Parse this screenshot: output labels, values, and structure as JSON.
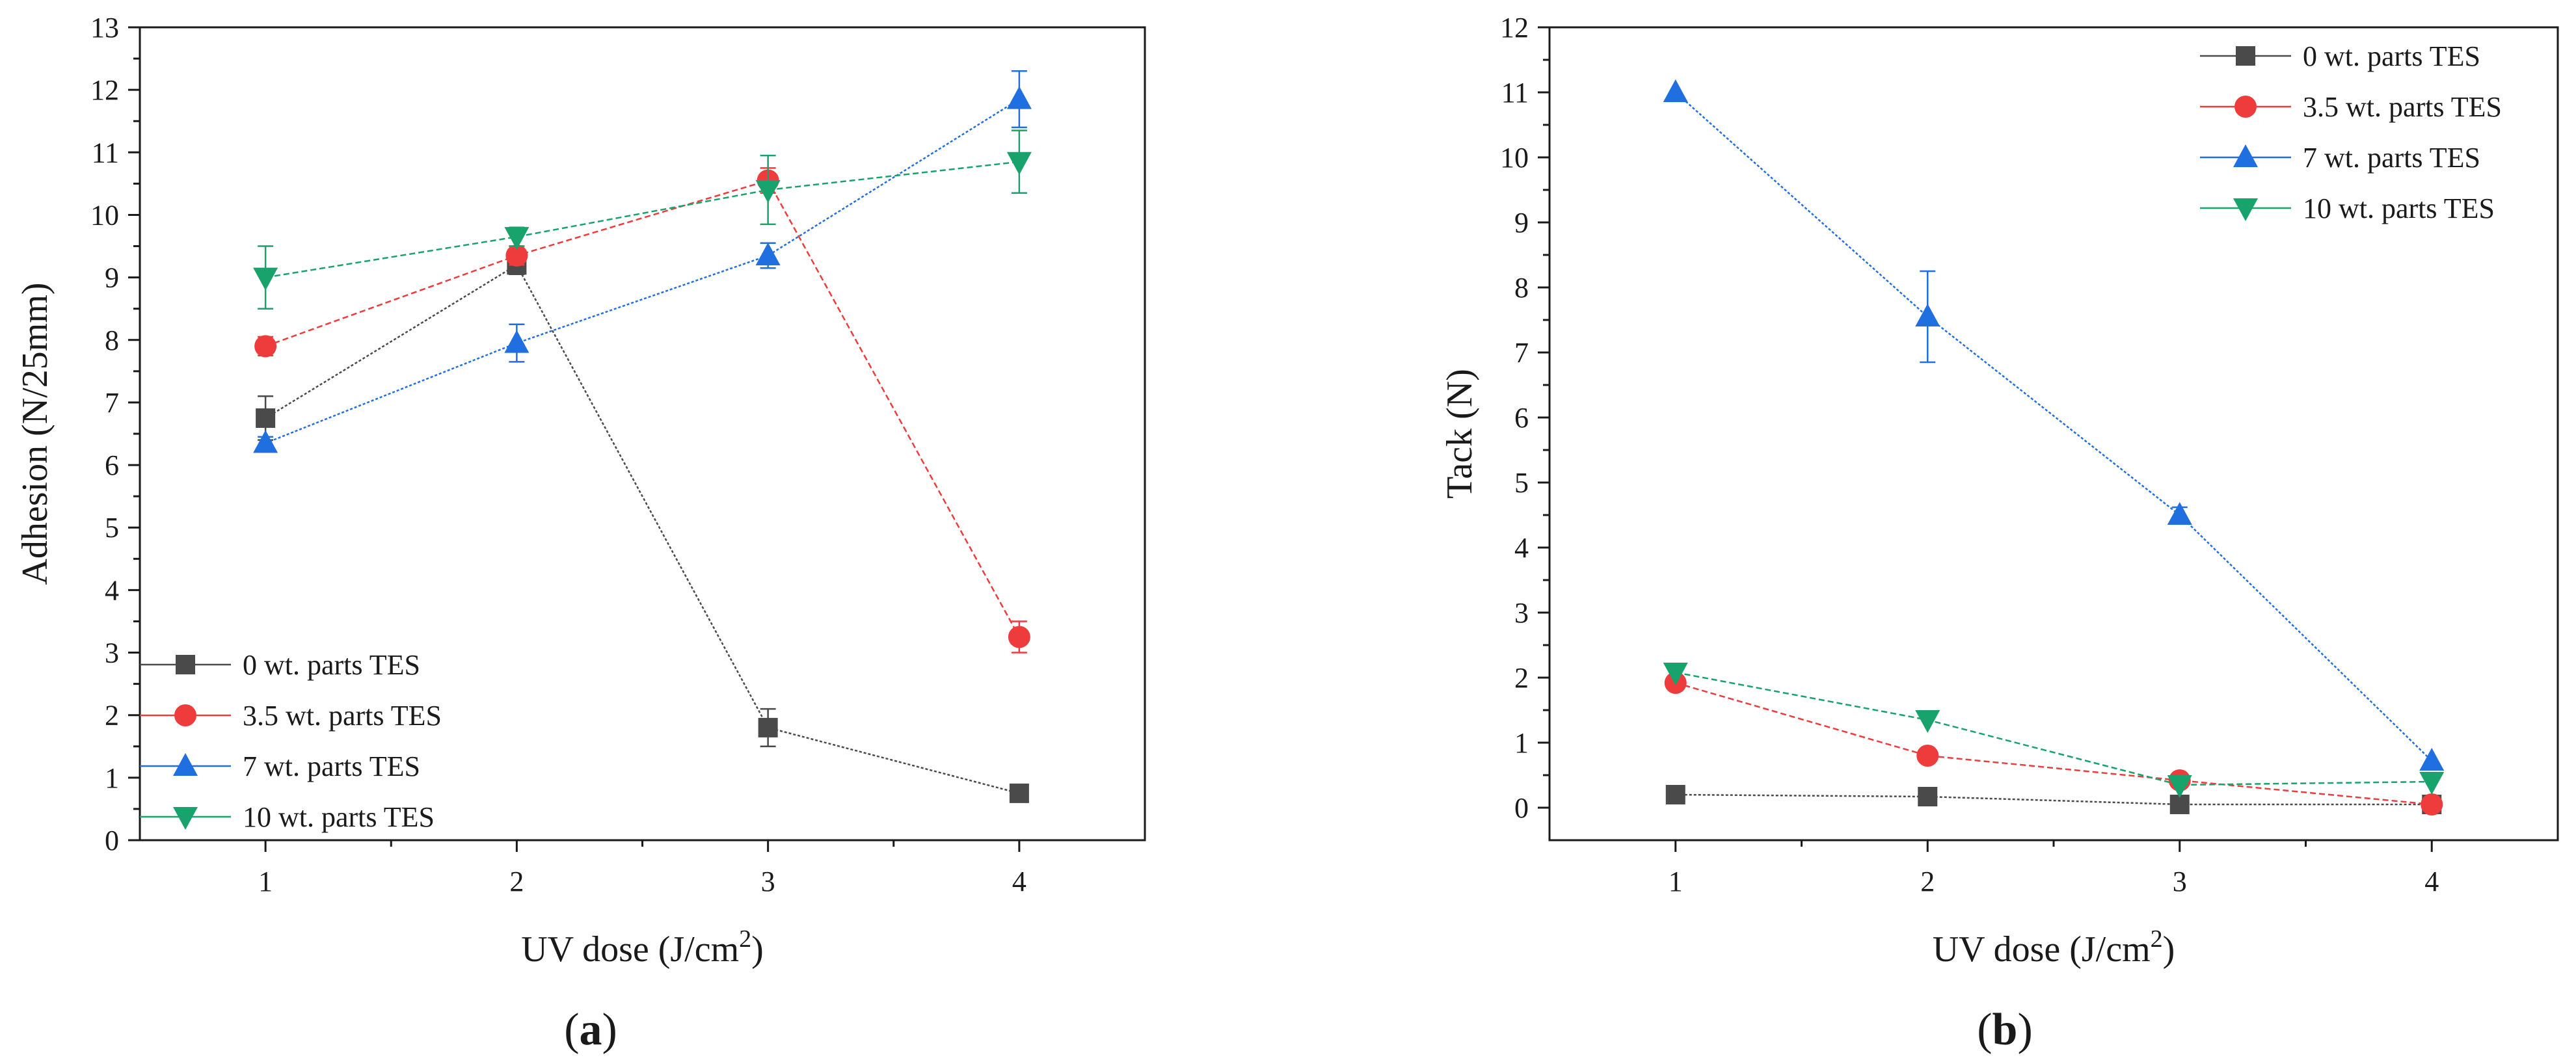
{
  "chart_data": [
    {
      "type": "line",
      "panel": "a",
      "xlabel": "UV dose (J/cm",
      "xlabel_sup": "2",
      "xlabel_end": ")",
      "ylabel": "Adhesion (N/25mm)",
      "xlim": [
        0.5,
        4.5
      ],
      "ylim": [
        0,
        13
      ],
      "xticks": [
        1,
        2,
        3,
        4
      ],
      "yticks": [
        0,
        1,
        2,
        3,
        4,
        5,
        6,
        7,
        8,
        9,
        10,
        11,
        12,
        13
      ],
      "legend_position": "bottom-left",
      "x": [
        1,
        2,
        3,
        4
      ],
      "series": [
        {
          "name": "0 wt. parts TES",
          "values": [
            6.75,
            9.2,
            1.8,
            0.75
          ],
          "errors": [
            0.35,
            0.15,
            0.3,
            0.08
          ],
          "color": "#4a4a4a",
          "marker": "square"
        },
        {
          "name": "3.5 wt. parts TES",
          "values": [
            7.9,
            9.35,
            10.55,
            3.25
          ],
          "errors": [
            0.15,
            0.15,
            0.2,
            0.25
          ],
          "color": "#ee3b3b",
          "marker": "circle"
        },
        {
          "name": "7 wt. parts TES",
          "values": [
            6.35,
            7.95,
            9.35,
            11.85
          ],
          "errors": [
            0.1,
            0.3,
            0.2,
            0.45
          ],
          "color": "#1f6fe0",
          "marker": "triangle-up"
        },
        {
          "name": "10 wt. parts TES",
          "values": [
            9.0,
            9.65,
            10.4,
            10.85
          ],
          "errors": [
            0.5,
            0.15,
            0.55,
            0.5
          ],
          "color": "#17a36b",
          "marker": "triangle-down"
        }
      ]
    },
    {
      "type": "line",
      "panel": "b",
      "xlabel": "UV dose (J/cm",
      "xlabel_sup": "2",
      "xlabel_end": ")",
      "ylabel": "Tack (N)",
      "xlim": [
        0.5,
        4.5
      ],
      "ylim": [
        -0.5,
        12
      ],
      "xticks": [
        1,
        2,
        3,
        4
      ],
      "yticks": [
        0,
        1,
        2,
        3,
        4,
        5,
        6,
        7,
        8,
        9,
        10,
        11,
        12
      ],
      "legend_position": "top-right",
      "x": [
        1,
        2,
        3,
        4
      ],
      "series": [
        {
          "name": "0 wt. parts TES",
          "values": [
            0.2,
            0.17,
            0.05,
            0.05
          ],
          "errors": [
            0.05,
            0.05,
            0.05,
            0.05
          ],
          "color": "#4a4a4a",
          "marker": "square"
        },
        {
          "name": "3.5 wt. parts TES",
          "values": [
            1.92,
            0.8,
            0.42,
            0.05
          ],
          "errors": [
            0.05,
            0.05,
            0.05,
            0.05
          ],
          "color": "#ee3b3b",
          "marker": "circle"
        },
        {
          "name": "7 wt. parts TES",
          "values": [
            11.0,
            7.55,
            4.5,
            0.72
          ],
          "errors": [
            0.05,
            0.7,
            0.12,
            0.05
          ],
          "color": "#1f6fe0",
          "marker": "triangle-up"
        },
        {
          "name": "10 wt. parts TES",
          "values": [
            2.08,
            1.35,
            0.35,
            0.4
          ],
          "errors": [
            0.05,
            0.05,
            0.05,
            0.05
          ],
          "color": "#17a36b",
          "marker": "triangle-down"
        }
      ]
    }
  ],
  "captions": {
    "a_open": "(",
    "a_letter": "a",
    "a_close": ")",
    "b_open": "(",
    "b_letter": "b",
    "b_close": ")"
  }
}
